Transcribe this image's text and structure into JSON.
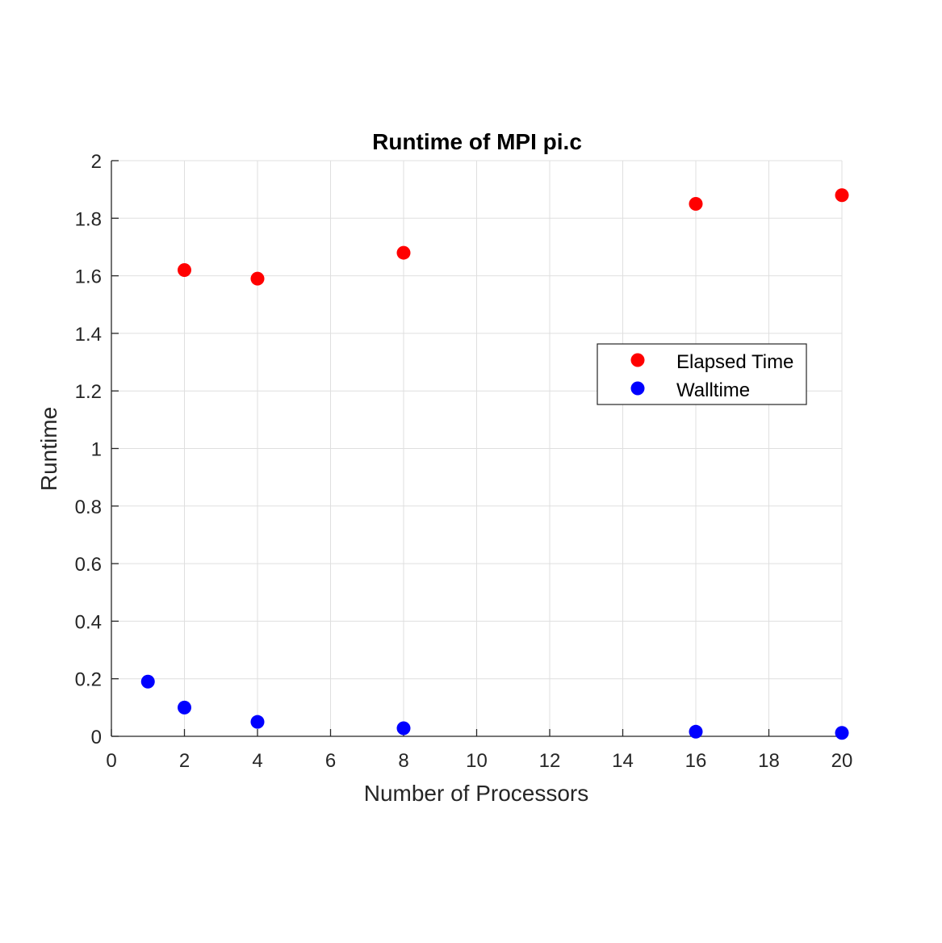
{
  "chart_data": {
    "type": "scatter",
    "title": "Runtime of MPI pi.c",
    "xlabel": "Number of Processors",
    "ylabel": "Runtime",
    "xlim": [
      0,
      20
    ],
    "ylim": [
      0,
      2
    ],
    "xticks": [
      0,
      2,
      4,
      6,
      8,
      10,
      12,
      14,
      16,
      18,
      20
    ],
    "xtick_labels": [
      "0",
      "2",
      "4",
      "6",
      "8",
      "10",
      "12",
      "14",
      "16",
      "18",
      "20"
    ],
    "yticks": [
      0,
      0.2,
      0.4,
      0.6,
      0.8,
      1,
      1.2,
      1.4,
      1.6,
      1.8,
      2
    ],
    "ytick_labels": [
      "0",
      "0.2",
      "0.4",
      "0.6",
      "0.8",
      "1",
      "1.2",
      "1.4",
      "1.6",
      "1.8",
      "2"
    ],
    "grid": true,
    "legend_position": "right",
    "series": [
      {
        "name": "Elapsed Time",
        "color": "#ff0000",
        "x": [
          2,
          4,
          8,
          16,
          20
        ],
        "y": [
          1.62,
          1.59,
          1.68,
          1.85,
          1.88
        ]
      },
      {
        "name": "Walltime",
        "color": "#0000ff",
        "x": [
          1,
          2,
          4,
          8,
          16,
          20
        ],
        "y": [
          0.19,
          0.1,
          0.05,
          0.028,
          0.016,
          0.012
        ]
      }
    ]
  }
}
